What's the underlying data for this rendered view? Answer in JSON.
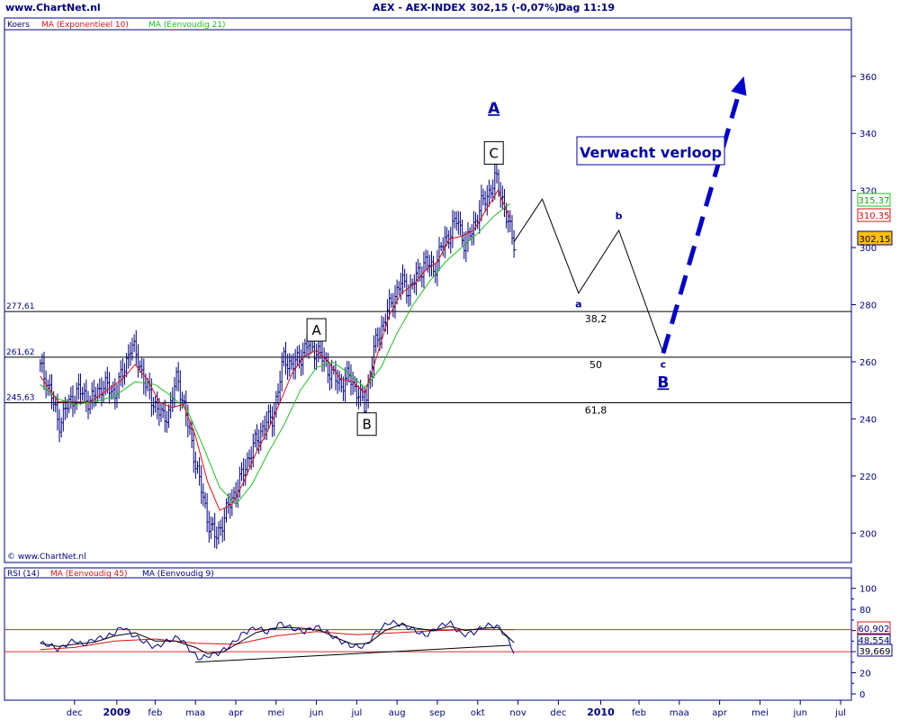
{
  "header": {
    "site": "www.ChartNet.nl",
    "instrument": "AEX - AEX-INDEX",
    "quote": "302,15 (-0,07%)",
    "period": "Dag",
    "time": "11:19"
  },
  "colors": {
    "navy": "#000080",
    "price": "#000080",
    "ema10": "#e01010",
    "sma21": "#20c020",
    "projection": "#0000cc"
  },
  "chart_data": [
    {
      "type": "line",
      "panel": "price",
      "scale": "linear",
      "ylim": [
        190,
        376
      ],
      "yticks": [
        200,
        220,
        240,
        260,
        280,
        300,
        320,
        340,
        360
      ],
      "legend": [
        "Koers",
        "MA (Exponentieel 10)",
        "MA (Eenvoudig 21)"
      ],
      "copyright": "© www.ChartNet.nl",
      "last_values": {
        "sma21": "315,37",
        "ema10": "310,35",
        "price": "302,15"
      },
      "x_months": [
        {
          "label": "dec",
          "t": 1
        },
        {
          "label": "2009",
          "t": 2.05,
          "year": true
        },
        {
          "label": "feb",
          "t": 3
        },
        {
          "label": "maa",
          "t": 4
        },
        {
          "label": "apr",
          "t": 5
        },
        {
          "label": "mei",
          "t": 6
        },
        {
          "label": "jun",
          "t": 7
        },
        {
          "label": "jul",
          "t": 8
        },
        {
          "label": "aug",
          "t": 9
        },
        {
          "label": "sep",
          "t": 10
        },
        {
          "label": "okt",
          "t": 11
        },
        {
          "label": "nov",
          "t": 12
        },
        {
          "label": "dec",
          "t": 13
        },
        {
          "label": "2010",
          "t": 14.05,
          "year": true
        },
        {
          "label": "feb",
          "t": 15
        },
        {
          "label": "maa",
          "t": 16
        },
        {
          "label": "apr",
          "t": 17
        },
        {
          "label": "mei",
          "t": 18
        },
        {
          "label": "jun",
          "t": 19
        },
        {
          "label": "jul",
          "t": 20
        }
      ],
      "close_series": [
        [
          0.15,
          258
        ],
        [
          0.4,
          250
        ],
        [
          0.6,
          238
        ],
        [
          0.8,
          244
        ],
        [
          1.1,
          250
        ],
        [
          1.4,
          246
        ],
        [
          1.7,
          252
        ],
        [
          2.0,
          249
        ],
        [
          2.2,
          256
        ],
        [
          2.4,
          266
        ],
        [
          2.6,
          260
        ],
        [
          2.8,
          250
        ],
        [
          3.0,
          245
        ],
        [
          3.2,
          240
        ],
        [
          3.35,
          243
        ],
        [
          3.55,
          255
        ],
        [
          3.75,
          242
        ],
        [
          3.9,
          232
        ],
        [
          4.1,
          218
        ],
        [
          4.3,
          205
        ],
        [
          4.5,
          198
        ],
        [
          4.7,
          205
        ],
        [
          4.9,
          212
        ],
        [
          5.1,
          218
        ],
        [
          5.3,
          226
        ],
        [
          5.5,
          232
        ],
        [
          5.7,
          238
        ],
        [
          5.9,
          240
        ],
        [
          6.05,
          250
        ],
        [
          6.2,
          262
        ],
        [
          6.4,
          258
        ],
        [
          6.6,
          262
        ],
        [
          6.8,
          266
        ],
        [
          7.0,
          264
        ],
        [
          7.2,
          260
        ],
        [
          7.4,
          255
        ],
        [
          7.6,
          252
        ],
        [
          7.8,
          255
        ],
        [
          8.0,
          250
        ],
        [
          8.2,
          244
        ],
        [
          8.35,
          258
        ],
        [
          8.5,
          268
        ],
        [
          8.7,
          275
        ],
        [
          8.9,
          282
        ],
        [
          9.1,
          288
        ],
        [
          9.3,
          285
        ],
        [
          9.5,
          290
        ],
        [
          9.7,
          295
        ],
        [
          9.9,
          292
        ],
        [
          10.1,
          300
        ],
        [
          10.3,
          305
        ],
        [
          10.5,
          310
        ],
        [
          10.7,
          300
        ],
        [
          10.9,
          308
        ],
        [
          11.1,
          315
        ],
        [
          11.3,
          320
        ],
        [
          11.45,
          324
        ],
        [
          11.6,
          318
        ],
        [
          11.75,
          308
        ],
        [
          11.9,
          302.15
        ]
      ],
      "ema10_series": [
        [
          0.15,
          255
        ],
        [
          0.6,
          246
        ],
        [
          1.0,
          246
        ],
        [
          1.4,
          246
        ],
        [
          1.8,
          250
        ],
        [
          2.2,
          254
        ],
        [
          2.5,
          259
        ],
        [
          2.8,
          254
        ],
        [
          3.1,
          246
        ],
        [
          3.4,
          244
        ],
        [
          3.7,
          245
        ],
        [
          4.0,
          234
        ],
        [
          4.3,
          218
        ],
        [
          4.6,
          208
        ],
        [
          4.9,
          210
        ],
        [
          5.2,
          218
        ],
        [
          5.5,
          228
        ],
        [
          5.8,
          236
        ],
        [
          6.1,
          246
        ],
        [
          6.4,
          256
        ],
        [
          6.7,
          262
        ],
        [
          7.0,
          264
        ],
        [
          7.3,
          260
        ],
        [
          7.6,
          254
        ],
        [
          7.9,
          253
        ],
        [
          8.2,
          249
        ],
        [
          8.5,
          262
        ],
        [
          8.8,
          276
        ],
        [
          9.1,
          284
        ],
        [
          9.4,
          287
        ],
        [
          9.7,
          292
        ],
        [
          10.0,
          295
        ],
        [
          10.3,
          303
        ],
        [
          10.6,
          304
        ],
        [
          10.9,
          306
        ],
        [
          11.2,
          313
        ],
        [
          11.5,
          320
        ],
        [
          11.8,
          310.35
        ]
      ],
      "sma21_series": [
        [
          0.15,
          252
        ],
        [
          0.6,
          247
        ],
        [
          1.0,
          245
        ],
        [
          1.5,
          246
        ],
        [
          2.0,
          248
        ],
        [
          2.5,
          253
        ],
        [
          3.0,
          252
        ],
        [
          3.4,
          248
        ],
        [
          3.8,
          243
        ],
        [
          4.2,
          230
        ],
        [
          4.6,
          216
        ],
        [
          5.0,
          210
        ],
        [
          5.4,
          217
        ],
        [
          5.8,
          228
        ],
        [
          6.2,
          238
        ],
        [
          6.6,
          250
        ],
        [
          7.0,
          258
        ],
        [
          7.4,
          260
        ],
        [
          7.8,
          256
        ],
        [
          8.2,
          251
        ],
        [
          8.6,
          258
        ],
        [
          9.0,
          270
        ],
        [
          9.4,
          280
        ],
        [
          9.8,
          288
        ],
        [
          10.2,
          295
        ],
        [
          10.6,
          300
        ],
        [
          11.0,
          305
        ],
        [
          11.4,
          311
        ],
        [
          11.8,
          315.37
        ]
      ],
      "fib_levels": [
        {
          "value": 277.61,
          "label": "277,61",
          "pct": "38,2"
        },
        {
          "value": 261.62,
          "label": "261,62",
          "pct": "50"
        },
        {
          "value": 245.63,
          "label": "245,63",
          "pct": "61,8"
        }
      ],
      "projection_path": [
        [
          11.9,
          302
        ],
        [
          12.6,
          317
        ],
        [
          13.5,
          284
        ],
        [
          14.5,
          306
        ],
        [
          15.6,
          263
        ]
      ],
      "projection_target": [
        [
          15.6,
          263
        ],
        [
          17.6,
          360
        ]
      ],
      "annotations": [
        {
          "text": "A",
          "t": 7.0,
          "v": 271,
          "style": "box"
        },
        {
          "text": "B",
          "t": 8.25,
          "v": 238,
          "style": "box"
        },
        {
          "text": "C",
          "t": 11.4,
          "v": 333,
          "style": "box"
        },
        {
          "text": "A",
          "t": 11.4,
          "v": 347,
          "style": "upper"
        },
        {
          "text": "a",
          "t": 13.5,
          "v": 279,
          "style": "lower"
        },
        {
          "text": "b",
          "t": 14.5,
          "v": 310,
          "style": "lower"
        },
        {
          "text": "c",
          "t": 15.6,
          "v": 258,
          "style": "lower"
        },
        {
          "text": "B",
          "t": 15.6,
          "v": 251,
          "style": "upper"
        }
      ],
      "callout": "Verwacht verloop"
    },
    {
      "type": "line",
      "panel": "rsi",
      "ylim": [
        -6,
        110
      ],
      "yticks": [
        0,
        10,
        20,
        30,
        40,
        50,
        60,
        70,
        80,
        90,
        100
      ],
      "yticks_labeled": [
        0,
        20,
        40,
        60,
        80,
        100
      ],
      "legend": [
        "RSI (14)",
        "MA (Eenvoudig 45)",
        "MA (Eenvoudig 9)"
      ],
      "ref_lines": [
        60.902,
        40.0
      ],
      "last_values": {
        "upper": "60,902",
        "mid": "48,554",
        "lower": "39,669"
      },
      "rsi_series": [
        [
          0.15,
          48
        ],
        [
          0.4,
          46
        ],
        [
          0.6,
          42
        ],
        [
          0.8,
          47
        ],
        [
          1.0,
          51
        ],
        [
          1.2,
          46
        ],
        [
          1.5,
          52
        ],
        [
          1.8,
          54
        ],
        [
          2.0,
          58
        ],
        [
          2.2,
          64
        ],
        [
          2.4,
          57
        ],
        [
          2.7,
          50
        ],
        [
          3.0,
          44
        ],
        [
          3.3,
          50
        ],
        [
          3.6,
          54
        ],
        [
          3.9,
          40
        ],
        [
          4.1,
          33
        ],
        [
          4.3,
          36
        ],
        [
          4.6,
          39
        ],
        [
          4.9,
          47
        ],
        [
          5.2,
          58
        ],
        [
          5.5,
          63
        ],
        [
          5.8,
          58
        ],
        [
          6.1,
          67
        ],
        [
          6.4,
          62
        ],
        [
          6.7,
          59
        ],
        [
          7.0,
          64
        ],
        [
          7.3,
          57
        ],
        [
          7.6,
          50
        ],
        [
          7.9,
          45
        ],
        [
          8.2,
          45
        ],
        [
          8.5,
          59
        ],
        [
          8.8,
          68
        ],
        [
          9.1,
          66
        ],
        [
          9.4,
          61
        ],
        [
          9.7,
          55
        ],
        [
          10.0,
          63
        ],
        [
          10.3,
          68
        ],
        [
          10.6,
          56
        ],
        [
          10.9,
          58
        ],
        [
          11.2,
          65
        ],
        [
          11.5,
          64
        ],
        [
          11.7,
          55
        ],
        [
          11.9,
          39.669
        ]
      ],
      "ma9_series": [
        [
          0.15,
          48
        ],
        [
          0.6,
          45
        ],
        [
          1.0,
          47
        ],
        [
          1.5,
          49
        ],
        [
          2.0,
          55
        ],
        [
          2.5,
          58
        ],
        [
          3.0,
          50
        ],
        [
          3.5,
          50
        ],
        [
          4.0,
          44
        ],
        [
          4.3,
          38
        ],
        [
          4.7,
          40
        ],
        [
          5.1,
          49
        ],
        [
          5.5,
          58
        ],
        [
          5.9,
          62
        ],
        [
          6.3,
          63
        ],
        [
          6.7,
          62
        ],
        [
          7.1,
          60
        ],
        [
          7.5,
          53
        ],
        [
          7.9,
          47
        ],
        [
          8.3,
          48
        ],
        [
          8.7,
          60
        ],
        [
          9.1,
          66
        ],
        [
          9.5,
          62
        ],
        [
          9.9,
          60
        ],
        [
          10.3,
          64
        ],
        [
          10.7,
          60
        ],
        [
          11.1,
          62
        ],
        [
          11.5,
          63
        ],
        [
          11.9,
          48.554
        ]
      ],
      "ma45_series": [
        [
          0.15,
          42
        ],
        [
          1.0,
          44
        ],
        [
          2.0,
          50
        ],
        [
          3.0,
          52
        ],
        [
          4.0,
          48
        ],
        [
          5.0,
          47
        ],
        [
          6.0,
          55
        ],
        [
          7.0,
          59
        ],
        [
          8.0,
          56
        ],
        [
          9.0,
          58
        ],
        [
          10.0,
          60
        ],
        [
          11.0,
          61
        ],
        [
          11.9,
          60.902
        ]
      ],
      "support_line": [
        [
          4.0,
          30
        ],
        [
          11.8,
          46
        ]
      ]
    }
  ]
}
